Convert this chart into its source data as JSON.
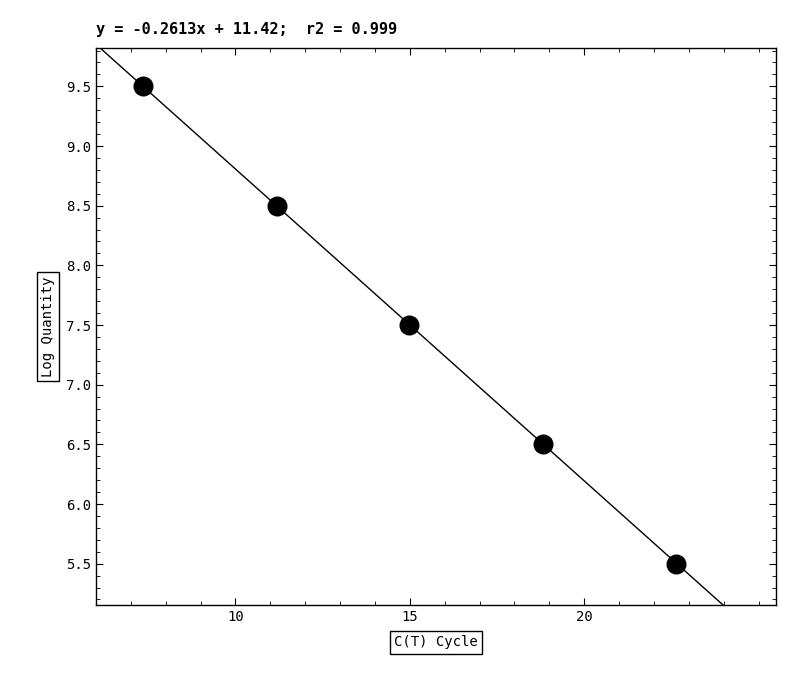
{
  "scatter_x": [
    7.35,
    11.18,
    14.99,
    18.81,
    22.62
  ],
  "scatter_y": [
    9.5,
    8.5,
    7.5,
    6.5,
    5.5
  ],
  "slope": -0.2613,
  "intercept": 11.42,
  "equation_text": "y = -0.2613x + 11.42;  r2 = 0.999",
  "xlabel": "C(T) Cycle",
  "ylabel": "Log Quantity",
  "xlim": [
    6.0,
    25.5
  ],
  "ylim": [
    5.15,
    9.82
  ],
  "xticks": [
    10,
    15,
    20
  ],
  "yticks": [
    5.5,
    6.0,
    6.5,
    7.0,
    7.5,
    8.0,
    8.5,
    9.0,
    9.5
  ],
  "background_color": "#ffffff",
  "line_color": "#000000",
  "dot_color": "#000000",
  "dot_size": 100,
  "title_fontsize": 11,
  "axis_fontsize": 10,
  "tick_fontsize": 10
}
